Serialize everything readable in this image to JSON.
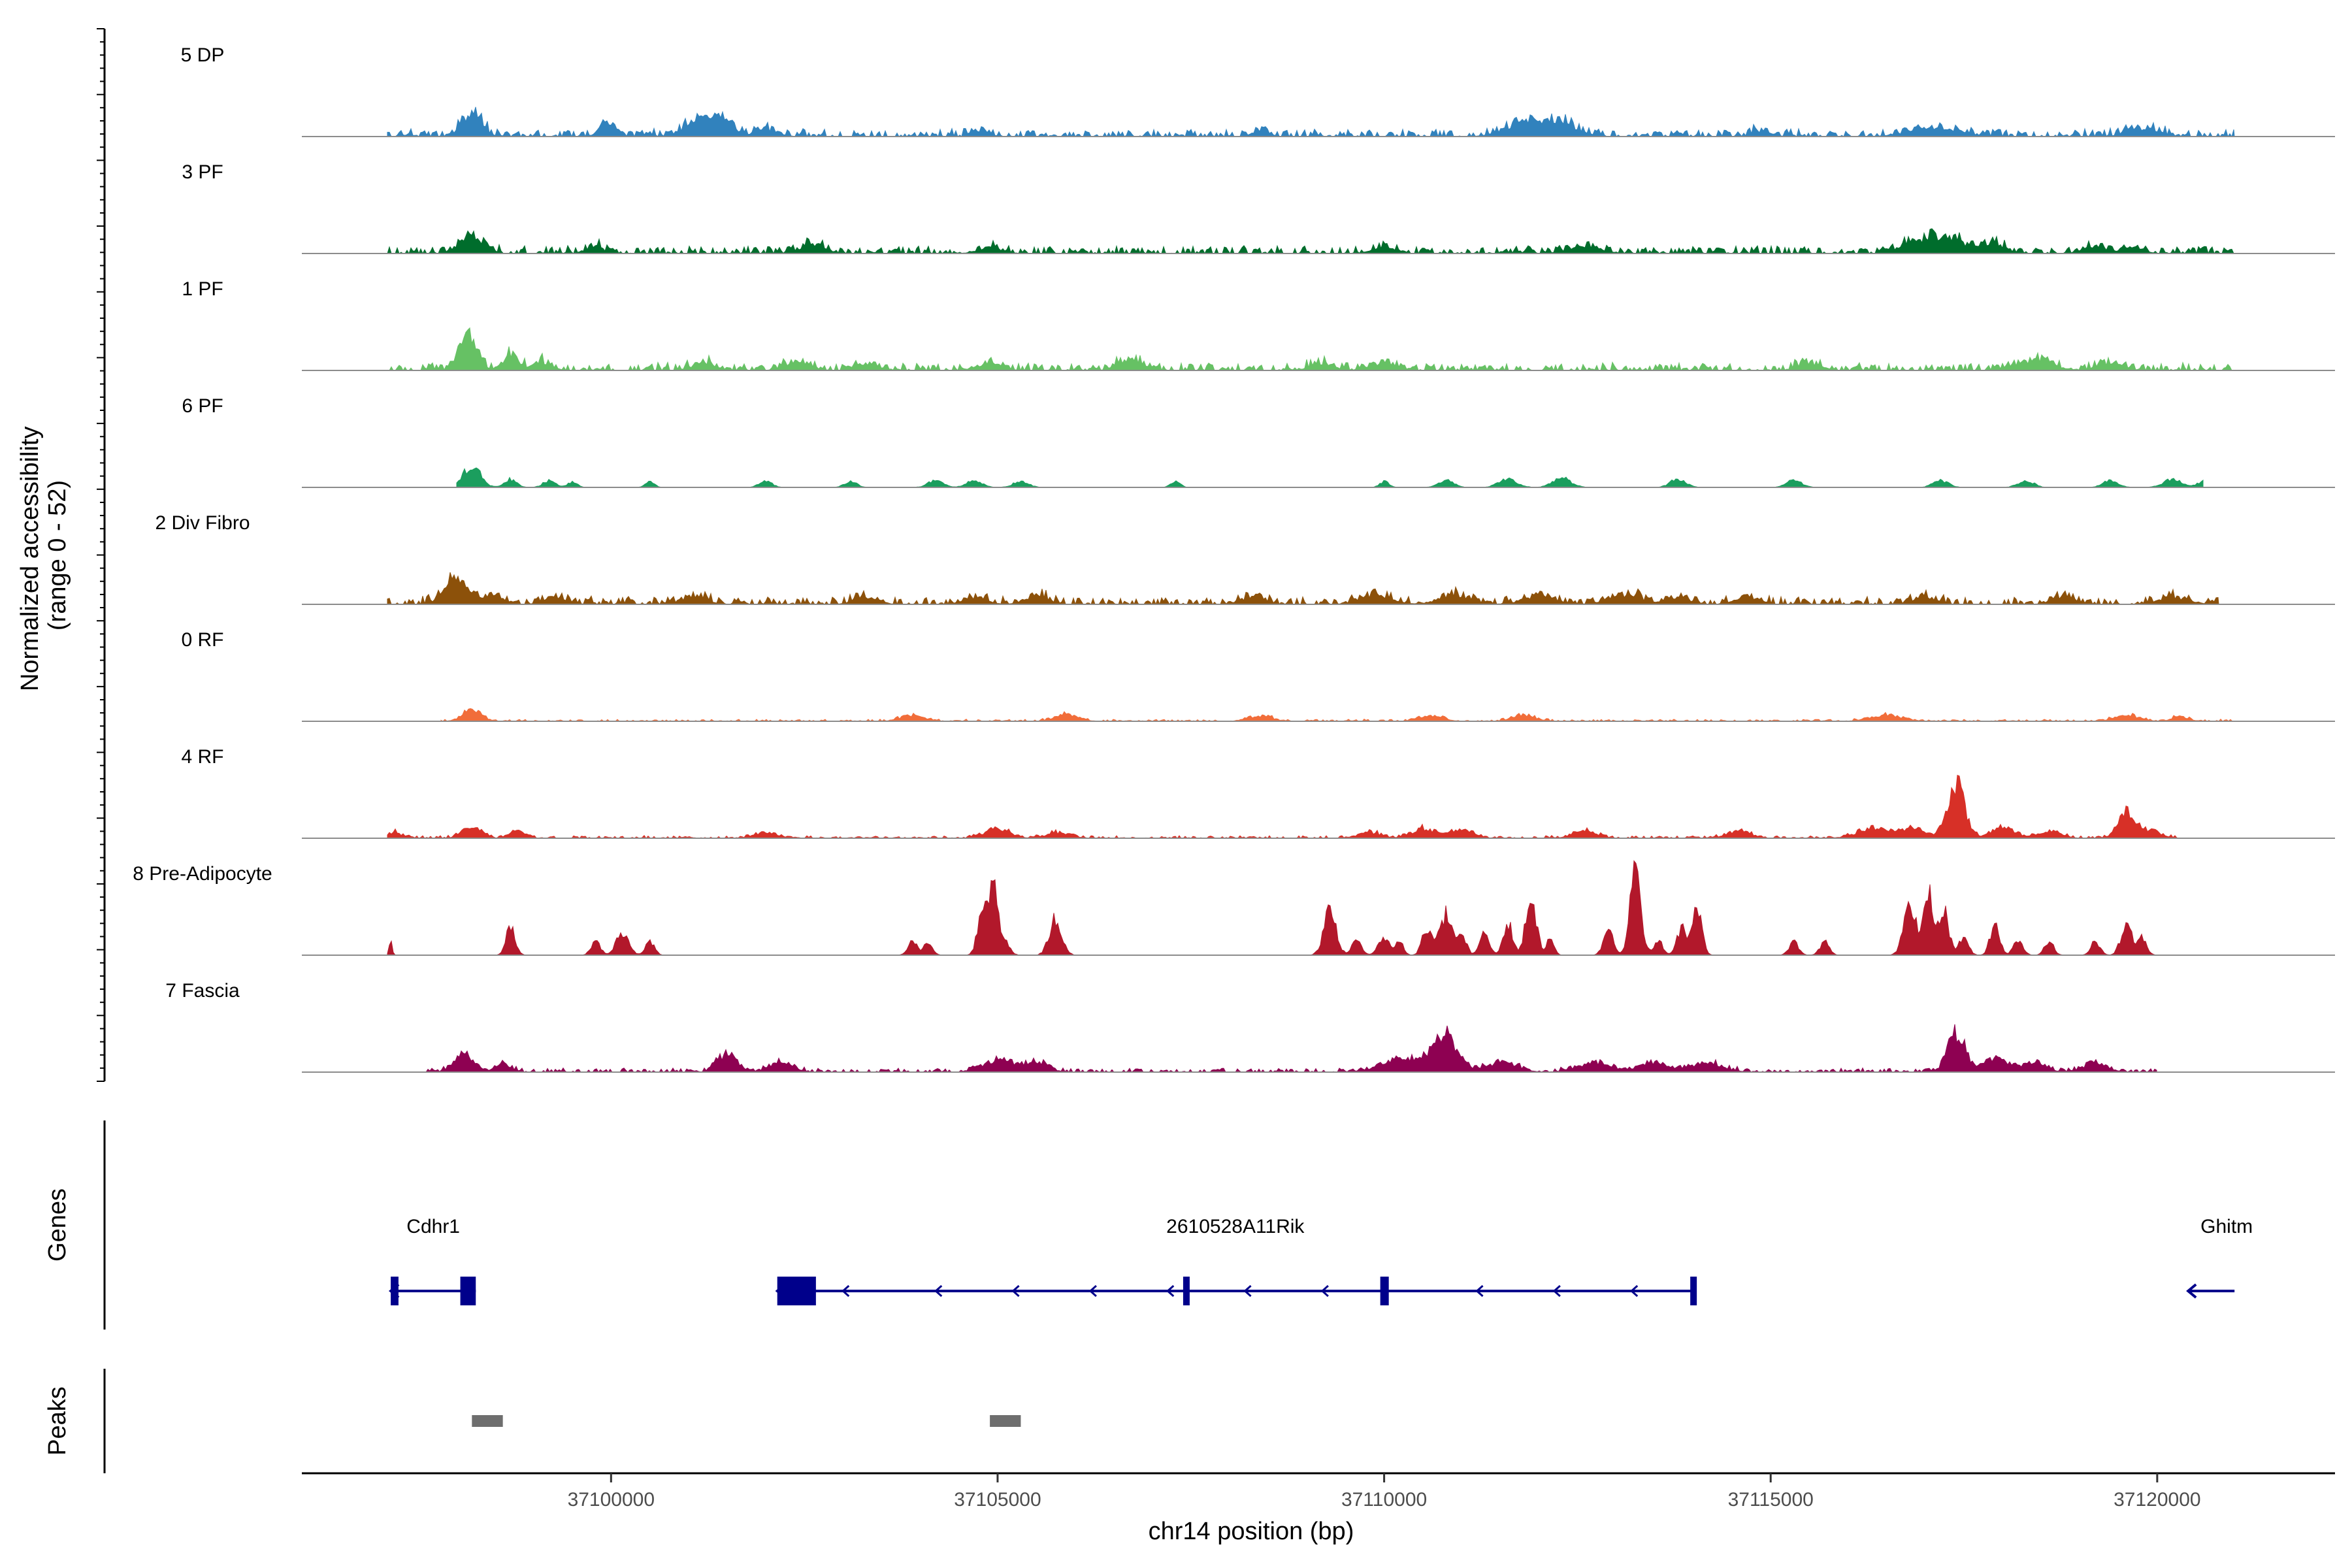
{
  "chart_data": {
    "type": "area",
    "title": "",
    "ylabel": "Normalized accessibility",
    "ylabel_range": "(range 0 - 52)",
    "xlabel": "chr14 position (bp)",
    "xlim": [
      37096000,
      37122300
    ],
    "ylim": [
      0,
      52
    ],
    "chromosome": "chr14",
    "x_ticks": [
      37100000,
      37105000,
      37110000,
      37115000,
      37120000
    ],
    "x_tick_labels": [
      "37100000",
      "37105000",
      "37110000",
      "37115000",
      "37120000"
    ],
    "region": [
      37097100,
      37121000
    ],
    "tracks": [
      {
        "name": "5 DP",
        "color": "#3182bd",
        "bg": 1.0,
        "bgStart": 37097100,
        "bgEnd": 37121000,
        "noise": 1.5,
        "peaks": [
          [
            37098200,
            5.2,
            120
          ],
          [
            37099950,
            3.0,
            90
          ],
          [
            37101200,
            4.0,
            200
          ],
          [
            37101500,
            2.5,
            100
          ],
          [
            37102000,
            1.5,
            150
          ],
          [
            37104800,
            1.2,
            100
          ],
          [
            37108400,
            1.2,
            100
          ],
          [
            37111800,
            2.8,
            250
          ],
          [
            37112300,
            2.5,
            200
          ],
          [
            37114900,
            1.2,
            120
          ],
          [
            37117100,
            2.0,
            300
          ],
          [
            37119800,
            1.5,
            200
          ]
        ]
      },
      {
        "name": "3 PF",
        "color": "#006d2c",
        "bg": 1.0,
        "bgStart": 37097100,
        "bgEnd": 37121000,
        "noise": 1.5,
        "peaks": [
          [
            37098200,
            3.8,
            150
          ],
          [
            37099800,
            1.5,
            100
          ],
          [
            37102600,
            1.8,
            150
          ],
          [
            37104900,
            1.3,
            150
          ],
          [
            37110000,
            1.2,
            150
          ],
          [
            37112600,
            1.5,
            200
          ],
          [
            37117200,
            3.5,
            220
          ],
          [
            37116800,
            2.0,
            150
          ],
          [
            37117800,
            2.0,
            200
          ],
          [
            37119200,
            1.5,
            150
          ],
          [
            37119700,
            1.5,
            120
          ]
        ]
      },
      {
        "name": "1 PF",
        "color": "#66c164",
        "bg": 1.0,
        "bgStart": 37097100,
        "bgEnd": 37121000,
        "noise": 1.5,
        "peaks": [
          [
            37098150,
            8.0,
            110
          ],
          [
            37098700,
            3.2,
            100
          ],
          [
            37099100,
            1.8,
            120
          ],
          [
            37101200,
            1.5,
            150
          ],
          [
            37102400,
            1.8,
            150
          ],
          [
            37103300,
            1.5,
            150
          ],
          [
            37104900,
            1.5,
            150
          ],
          [
            37106700,
            2.2,
            150
          ],
          [
            37109200,
            1.5,
            150
          ],
          [
            37110000,
            1.5,
            150
          ],
          [
            37115500,
            1.5,
            150
          ],
          [
            37118400,
            2.0,
            250
          ],
          [
            37119400,
            1.5,
            150
          ]
        ]
      },
      {
        "name": "6 PF",
        "color": "#1b9e5e",
        "bg": 0.0,
        "bgStart": 37098000,
        "bgEnd": 37120600,
        "noise": 0.8,
        "peaks": [
          [
            37098200,
            4.8,
            110
          ],
          [
            37098700,
            1.8,
            80
          ],
          [
            37099200,
            1.5,
            80
          ],
          [
            37099500,
            1.2,
            60
          ],
          [
            37100500,
            1.2,
            60
          ],
          [
            37102000,
            1.5,
            80
          ],
          [
            37103100,
            1.3,
            80
          ],
          [
            37104200,
            1.5,
            100
          ],
          [
            37104700,
            1.5,
            100
          ],
          [
            37105300,
            1.3,
            100
          ],
          [
            37107300,
            1.3,
            60
          ],
          [
            37110000,
            1.3,
            60
          ],
          [
            37110800,
            1.5,
            100
          ],
          [
            37111600,
            1.8,
            120
          ],
          [
            37112300,
            2.0,
            120
          ],
          [
            37113800,
            1.8,
            100
          ],
          [
            37115300,
            1.5,
            100
          ],
          [
            37117200,
            1.5,
            100
          ],
          [
            37118300,
            1.5,
            100
          ],
          [
            37119400,
            1.5,
            100
          ],
          [
            37120200,
            1.8,
            120
          ],
          [
            37120600,
            1.3,
            80
          ]
        ]
      },
      {
        "name": "2 Div Fibro",
        "color": "#8c510a",
        "bg": 1.0,
        "bgStart": 37097100,
        "bgEnd": 37120800,
        "noise": 1.5,
        "peaks": [
          [
            37098000,
            5.5,
            150
          ],
          [
            37098500,
            2.0,
            120
          ],
          [
            37099300,
            1.5,
            150
          ],
          [
            37101100,
            1.5,
            150
          ],
          [
            37103300,
            1.5,
            150
          ],
          [
            37104700,
            1.5,
            150
          ],
          [
            37105500,
            1.8,
            150
          ],
          [
            37108300,
            1.5,
            150
          ],
          [
            37109900,
            2.0,
            200
          ],
          [
            37110900,
            1.8,
            200
          ],
          [
            37112000,
            1.8,
            200
          ],
          [
            37113100,
            2.0,
            200
          ],
          [
            37113800,
            1.5,
            150
          ],
          [
            37114700,
            1.5,
            150
          ],
          [
            37117000,
            1.5,
            150
          ],
          [
            37118800,
            1.5,
            150
          ],
          [
            37120200,
            1.5,
            200
          ]
        ]
      },
      {
        "name": "0 RF",
        "color": "#f16d3a",
        "bg": 0.5,
        "bgStart": 37097800,
        "bgEnd": 37121000,
        "noise": 0.8,
        "peaks": [
          [
            37098200,
            2.5,
            120
          ],
          [
            37103900,
            1.2,
            150
          ],
          [
            37105900,
            1.5,
            150
          ],
          [
            37108400,
            1.2,
            150
          ],
          [
            37110600,
            1.2,
            150
          ],
          [
            37111800,
            1.2,
            150
          ],
          [
            37116500,
            1.3,
            200
          ],
          [
            37119600,
            1.3,
            150
          ],
          [
            37120300,
            1.0,
            100
          ]
        ]
      },
      {
        "name": "4 RF",
        "color": "#d73027",
        "bg": 0.5,
        "bgStart": 37097100,
        "bgEnd": 37120300,
        "noise": 1.0,
        "peaks": [
          [
            37097200,
            1.3,
            80
          ],
          [
            37098200,
            2.5,
            120
          ],
          [
            37098800,
            1.5,
            100
          ],
          [
            37102000,
            1.2,
            150
          ],
          [
            37105000,
            2.2,
            150
          ],
          [
            37105800,
            1.2,
            150
          ],
          [
            37109800,
            1.2,
            150
          ],
          [
            37110500,
            2.0,
            150
          ],
          [
            37111000,
            1.8,
            150
          ],
          [
            37112600,
            1.5,
            150
          ],
          [
            37114600,
            1.5,
            150
          ],
          [
            37116300,
            1.8,
            200
          ],
          [
            37116800,
            2.0,
            200
          ],
          [
            37117400,
            11.5,
            110
          ],
          [
            37118000,
            2.2,
            150
          ],
          [
            37118600,
            1.5,
            150
          ],
          [
            37119600,
            5.5,
            110
          ],
          [
            37119900,
            1.5,
            150
          ]
        ]
      },
      {
        "name": "8 Pre-Adipocyte",
        "color": "#b2182b",
        "bg": 0.0,
        "bgStart": 37097100,
        "bgEnd": 37120000,
        "noise": 1.0,
        "peaks": [
          [
            37097150,
            3.0,
            20
          ],
          [
            37098700,
            6.0,
            60
          ],
          [
            37099800,
            3.0,
            60
          ],
          [
            37100150,
            5.0,
            80
          ],
          [
            37100500,
            3.0,
            60
          ],
          [
            37103900,
            3.0,
            60
          ],
          [
            37104100,
            2.5,
            60
          ],
          [
            37104800,
            10.0,
            60
          ],
          [
            37104950,
            14.0,
            60
          ],
          [
            37105100,
            3.0,
            60
          ],
          [
            37105750,
            8.0,
            80
          ],
          [
            37109300,
            9.5,
            80
          ],
          [
            37109650,
            3.5,
            60
          ],
          [
            37110000,
            4.0,
            70
          ],
          [
            37110200,
            3.5,
            50
          ],
          [
            37110550,
            6.0,
            60
          ],
          [
            37110800,
            9.0,
            80
          ],
          [
            37111000,
            5.0,
            60
          ],
          [
            37111300,
            5.0,
            60
          ],
          [
            37111600,
            7.0,
            60
          ],
          [
            37111900,
            12.0,
            70
          ],
          [
            37112150,
            3.5,
            50
          ],
          [
            37112900,
            6.5,
            60
          ],
          [
            37113250,
            19.0,
            70
          ],
          [
            37113550,
            3.0,
            60
          ],
          [
            37113850,
            6.0,
            60
          ],
          [
            37114050,
            10.0,
            60
          ],
          [
            37115300,
            3.0,
            60
          ],
          [
            37115700,
            3.0,
            60
          ],
          [
            37116800,
            11.0,
            80
          ],
          [
            37117050,
            13.0,
            70
          ],
          [
            37117250,
            9.0,
            60
          ],
          [
            37117500,
            4.0,
            60
          ],
          [
            37117900,
            7.0,
            60
          ],
          [
            37118200,
            3.5,
            60
          ],
          [
            37118600,
            3.0,
            60
          ],
          [
            37119200,
            3.0,
            60
          ],
          [
            37119600,
            6.5,
            70
          ],
          [
            37119800,
            4.0,
            60
          ]
        ]
      },
      {
        "name": "7 Fascia",
        "color": "#8e0152",
        "bg": 0.5,
        "bgStart": 37097600,
        "bgEnd": 37120000,
        "noise": 1.5,
        "peaks": [
          [
            37098100,
            4.0,
            120
          ],
          [
            37098600,
            1.8,
            100
          ],
          [
            37101500,
            4.0,
            120
          ],
          [
            37102200,
            2.0,
            150
          ],
          [
            37105000,
            2.5,
            200
          ],
          [
            37105500,
            2.0,
            150
          ],
          [
            37110300,
            3.0,
            300
          ],
          [
            37110800,
            7.5,
            150
          ],
          [
            37111500,
            2.0,
            200
          ],
          [
            37112700,
            2.0,
            200
          ],
          [
            37113500,
            2.0,
            200
          ],
          [
            37114200,
            1.8,
            200
          ],
          [
            37117400,
            8.5,
            110
          ],
          [
            37117900,
            3.0,
            150
          ],
          [
            37118400,
            2.0,
            150
          ],
          [
            37119200,
            2.0,
            150
          ]
        ]
      }
    ],
    "gene_track_label": "Genes",
    "genes": [
      {
        "name": "Cdhr1",
        "start": 37097150,
        "end": 37098250,
        "strand": "-",
        "exons": [
          [
            37097150,
            37097250
          ],
          [
            37098050,
            37098250
          ]
        ],
        "arrows": []
      },
      {
        "name": "2610528A11Rik",
        "start": 37102150,
        "end": 37114000,
        "strand": "-",
        "exons": [
          [
            37102150,
            37102650
          ],
          [
            37107400,
            37107480
          ],
          [
            37109950,
            37110060
          ],
          [
            37113960,
            37114020
          ]
        ],
        "arrows": [
          37103000,
          37104200,
          37105200,
          37106200,
          37107200,
          37108200,
          37109200,
          37111200,
          37112200,
          37113200
        ]
      },
      {
        "name": "Ghitm",
        "start": 37120400,
        "end": 37121000,
        "strand": "-",
        "exons": [],
        "arrows": [
          37120400
        ]
      }
    ],
    "peak_track_label": "Peaks",
    "peaks": [
      [
        37098200,
        37098600
      ],
      [
        37104900,
        37105300
      ]
    ]
  }
}
